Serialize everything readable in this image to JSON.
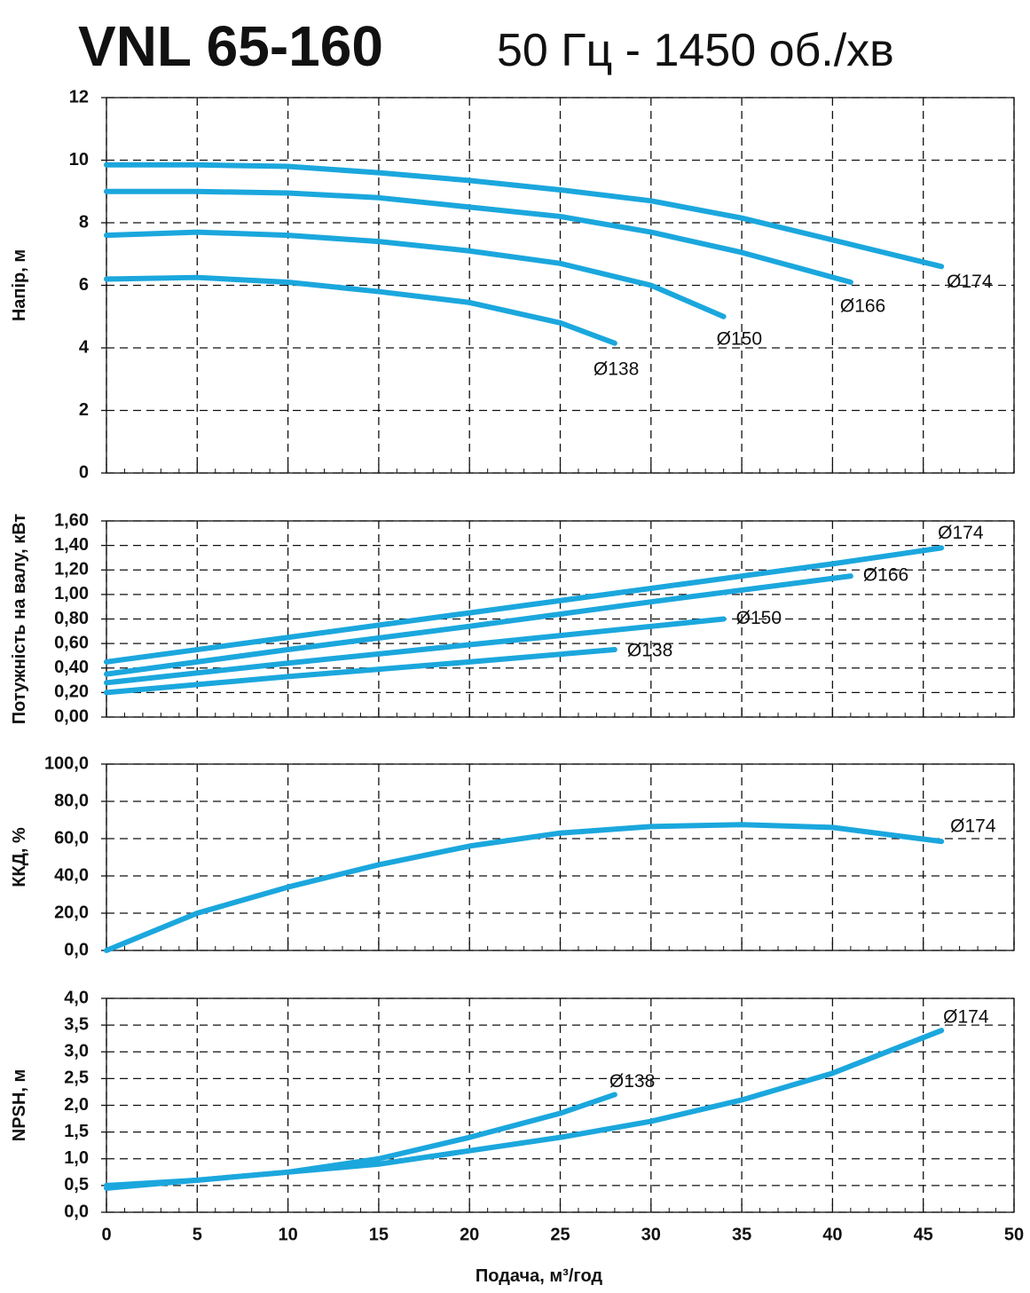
{
  "chart_data": [
    {
      "type": "line",
      "title": "VNL 65-160",
      "subtitle": "50 Гц - 1450 об./хв",
      "ylabel": "Напір, м",
      "xlim": [
        0,
        50
      ],
      "xticks": [
        0,
        5,
        10,
        15,
        20,
        25,
        30,
        35,
        40,
        45,
        50
      ],
      "ylim": [
        0,
        12
      ],
      "yticks": [
        0,
        2,
        4,
        6,
        8,
        10,
        12
      ],
      "grid": true,
      "series": [
        {
          "name": "Ø174",
          "color": "#1ba7dd",
          "x": [
            0,
            5,
            10,
            15,
            20,
            25,
            30,
            35,
            40,
            46
          ],
          "values": [
            9.85,
            9.85,
            9.8,
            9.6,
            9.35,
            9.05,
            8.7,
            8.15,
            7.45,
            6.6
          ]
        },
        {
          "name": "Ø166",
          "color": "#1ba7dd",
          "x": [
            0,
            5,
            10,
            15,
            20,
            25,
            30,
            35,
            41
          ],
          "values": [
            9.0,
            9.0,
            8.95,
            8.8,
            8.5,
            8.2,
            7.7,
            7.05,
            6.1
          ]
        },
        {
          "name": "Ø150",
          "color": "#1ba7dd",
          "x": [
            0,
            5,
            10,
            15,
            20,
            25,
            30,
            34
          ],
          "values": [
            7.6,
            7.7,
            7.6,
            7.4,
            7.1,
            6.7,
            6.0,
            5.0
          ]
        },
        {
          "name": "Ø138",
          "color": "#1ba7dd",
          "x": [
            0,
            5,
            10,
            15,
            20,
            25,
            28
          ],
          "values": [
            6.2,
            6.25,
            6.1,
            5.8,
            5.45,
            4.8,
            4.15
          ]
        }
      ]
    },
    {
      "type": "line",
      "ylabel": "Потужність на валу, кВт",
      "xlim": [
        0,
        50
      ],
      "xticks": [
        0,
        5,
        10,
        15,
        20,
        25,
        30,
        35,
        40,
        45,
        50
      ],
      "ylim": [
        0,
        1.6
      ],
      "yticks": [
        {
          "value": 0,
          "label": "0,00"
        },
        {
          "value": 0.2,
          "label": "0,20"
        },
        {
          "value": 0.4,
          "label": "0,40"
        },
        {
          "value": 0.6,
          "label": "0,60"
        },
        {
          "value": 0.8,
          "label": "0,80"
        },
        {
          "value": 1.0,
          "label": "1,00"
        },
        {
          "value": 1.2,
          "label": "1,20"
        },
        {
          "value": 1.4,
          "label": "1,40"
        },
        {
          "value": 1.6,
          "label": "1,60"
        }
      ],
      "grid": true,
      "series": [
        {
          "name": "Ø174",
          "color": "#1ba7dd",
          "x": [
            0,
            10,
            20,
            30,
            40,
            46
          ],
          "values": [
            0.45,
            0.65,
            0.85,
            1.05,
            1.25,
            1.38
          ]
        },
        {
          "name": "Ø166",
          "color": "#1ba7dd",
          "x": [
            0,
            10,
            20,
            30,
            41
          ],
          "values": [
            0.35,
            0.55,
            0.74,
            0.94,
            1.15
          ]
        },
        {
          "name": "Ø150",
          "color": "#1ba7dd",
          "x": [
            0,
            10,
            20,
            34
          ],
          "values": [
            0.28,
            0.44,
            0.59,
            0.8
          ]
        },
        {
          "name": "Ø138",
          "color": "#1ba7dd",
          "x": [
            0,
            10,
            20,
            28
          ],
          "values": [
            0.2,
            0.33,
            0.45,
            0.55
          ]
        }
      ]
    },
    {
      "type": "line",
      "ylabel": "ККД, %",
      "xlim": [
        0,
        50
      ],
      "xticks": [
        0,
        5,
        10,
        15,
        20,
        25,
        30,
        35,
        40,
        45,
        50
      ],
      "ylim": [
        0,
        100
      ],
      "yticks": [
        {
          "value": 0,
          "label": "0,0"
        },
        {
          "value": 20,
          "label": "20,0"
        },
        {
          "value": 40,
          "label": "40,0"
        },
        {
          "value": 60,
          "label": "60,0"
        },
        {
          "value": 80,
          "label": "80,0"
        },
        {
          "value": 100,
          "label": "100,0"
        }
      ],
      "grid": true,
      "series": [
        {
          "name": "Ø174",
          "color": "#1ba7dd",
          "x": [
            0,
            5,
            10,
            15,
            20,
            25,
            30,
            35,
            40,
            46
          ],
          "values": [
            0,
            20,
            34,
            46,
            56,
            63,
            66.5,
            67.5,
            66,
            58.5
          ]
        }
      ]
    },
    {
      "type": "line",
      "ylabel": "NPSH, м",
      "xlabel": "Подача, м³/год",
      "xlim": [
        0,
        50
      ],
      "xticks": [
        0,
        5,
        10,
        15,
        20,
        25,
        30,
        35,
        40,
        45,
        50
      ],
      "ylim": [
        0,
        4
      ],
      "yticks": [
        {
          "value": 0,
          "label": "0,0"
        },
        {
          "value": 0.5,
          "label": "0,5"
        },
        {
          "value": 1,
          "label": "1,0"
        },
        {
          "value": 1.5,
          "label": "1,5"
        },
        {
          "value": 2,
          "label": "2,0"
        },
        {
          "value": 2.5,
          "label": "2,5"
        },
        {
          "value": 3,
          "label": "3,0"
        },
        {
          "value": 3.5,
          "label": "3,5"
        },
        {
          "value": 4,
          "label": "4,0"
        }
      ],
      "grid": true,
      "series": [
        {
          "name": "Ø174",
          "color": "#1ba7dd",
          "x": [
            0,
            5,
            10,
            15,
            20,
            25,
            30,
            35,
            40,
            46
          ],
          "values": [
            0.45,
            0.6,
            0.75,
            0.9,
            1.15,
            1.4,
            1.7,
            2.1,
            2.6,
            3.4
          ]
        },
        {
          "name": "Ø138",
          "color": "#1ba7dd",
          "x": [
            0,
            5,
            10,
            15,
            20,
            25,
            28
          ],
          "values": [
            0.5,
            0.6,
            0.75,
            1.0,
            1.4,
            1.85,
            2.2
          ]
        }
      ]
    }
  ]
}
